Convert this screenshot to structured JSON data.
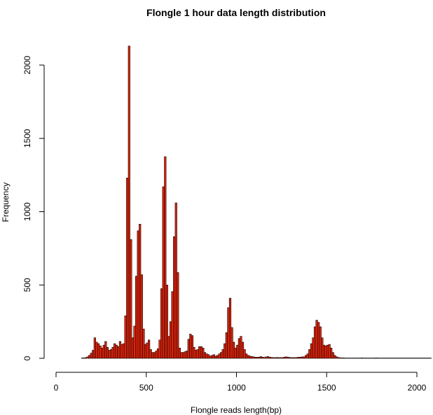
{
  "chart_data": {
    "type": "bar",
    "subtype": "histogram",
    "title": "Flongle 1 hour data length distribution",
    "xlabel": "Flongle reads length(bp)",
    "ylabel": "Frequency",
    "bin_width": 10,
    "xlim": [
      0,
      2000
    ],
    "ylim": [
      0,
      2000
    ],
    "x_ticks": [
      "0",
      "500",
      "1000",
      "1500",
      "2000"
    ],
    "x_tick_values": [
      0,
      500,
      1000,
      1500,
      2000
    ],
    "y_ticks": [
      "0",
      "500",
      "1000",
      "1500",
      "2000"
    ],
    "y_tick_values": [
      0,
      500,
      1000,
      1500,
      2000
    ],
    "bar_color": "#e8250c",
    "edge_color": "#000000",
    "bins_start": 140,
    "values": [
      2,
      3,
      5,
      10,
      20,
      35,
      55,
      140,
      110,
      100,
      85,
      70,
      90,
      115,
      75,
      55,
      60,
      75,
      100,
      90,
      80,
      115,
      95,
      100,
      290,
      1230,
      2130,
      810,
      140,
      220,
      560,
      870,
      915,
      570,
      200,
      95,
      105,
      125,
      60,
      40,
      40,
      50,
      65,
      125,
      475,
      1170,
      1375,
      500,
      150,
      250,
      455,
      830,
      1060,
      585,
      70,
      40,
      40,
      45,
      50,
      130,
      165,
      155,
      75,
      55,
      60,
      80,
      80,
      70,
      40,
      30,
      25,
      15,
      20,
      25,
      15,
      20,
      30,
      40,
      60,
      100,
      175,
      345,
      410,
      210,
      110,
      70,
      90,
      135,
      150,
      110,
      60,
      30,
      20,
      15,
      12,
      10,
      8,
      8,
      8,
      12,
      8,
      6,
      10,
      12,
      8,
      6,
      5,
      5,
      6,
      5,
      5,
      5,
      8,
      10,
      8,
      6,
      5,
      5,
      5,
      6,
      8,
      8,
      10,
      10,
      20,
      30,
      60,
      100,
      140,
      215,
      260,
      245,
      215,
      140,
      90,
      85,
      90,
      95,
      70,
      40,
      20,
      10,
      6,
      4,
      3,
      3,
      2,
      2,
      2,
      2,
      2,
      2,
      2,
      2,
      2,
      3,
      2,
      2,
      2,
      2,
      2,
      2,
      2,
      3,
      2,
      2,
      2,
      2,
      2,
      2,
      2,
      2,
      2,
      2,
      2,
      2,
      2,
      2,
      2,
      2,
      2,
      2,
      2,
      2,
      2,
      2,
      2,
      2,
      2,
      2,
      2,
      2,
      2,
      2
    ]
  }
}
